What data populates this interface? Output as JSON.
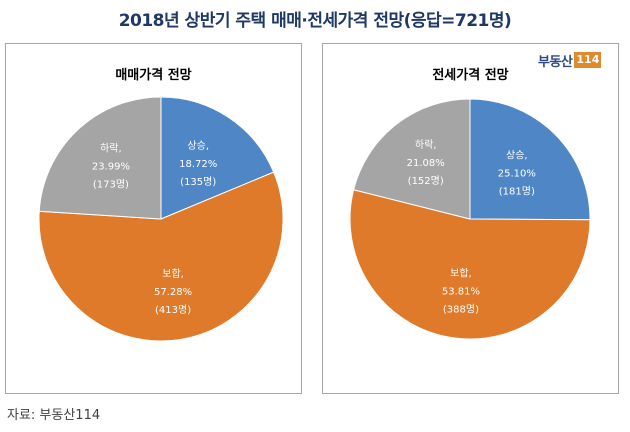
{
  "title": "2018년 상반기 주택 매매·전세가격 전망(응답=721명)",
  "logo": {
    "text": "부동산",
    "badge": "114"
  },
  "source": "자료: 부동산114",
  "colors": {
    "rise": "#4f86c6",
    "flat": "#e07a2b",
    "fall": "#a5a5a5"
  },
  "chart_data": [
    {
      "type": "pie",
      "title": "매매가격 전망",
      "slices": [
        {
          "label": "상승,",
          "pct": "18.72%",
          "count": "(135명)",
          "value": 18.72,
          "color": "#4f86c6"
        },
        {
          "label": "보합,",
          "pct": "57.28%",
          "count": "(413명)",
          "value": 57.28,
          "color": "#e07a2b"
        },
        {
          "label": "하락,",
          "pct": "23.99%",
          "count": "(173명)",
          "value": 23.99,
          "color": "#a5a5a5"
        }
      ]
    },
    {
      "type": "pie",
      "title": "전세가격 전망",
      "slices": [
        {
          "label": "상승,",
          "pct": "25.10%",
          "count": "(181명)",
          "value": 25.1,
          "color": "#4f86c6"
        },
        {
          "label": "보합,",
          "pct": "53.81%",
          "count": "(388명)",
          "value": 53.81,
          "color": "#e07a2b"
        },
        {
          "label": "하락,",
          "pct": "21.08%",
          "count": "(152명)",
          "value": 21.08,
          "color": "#a5a5a5"
        }
      ]
    }
  ]
}
